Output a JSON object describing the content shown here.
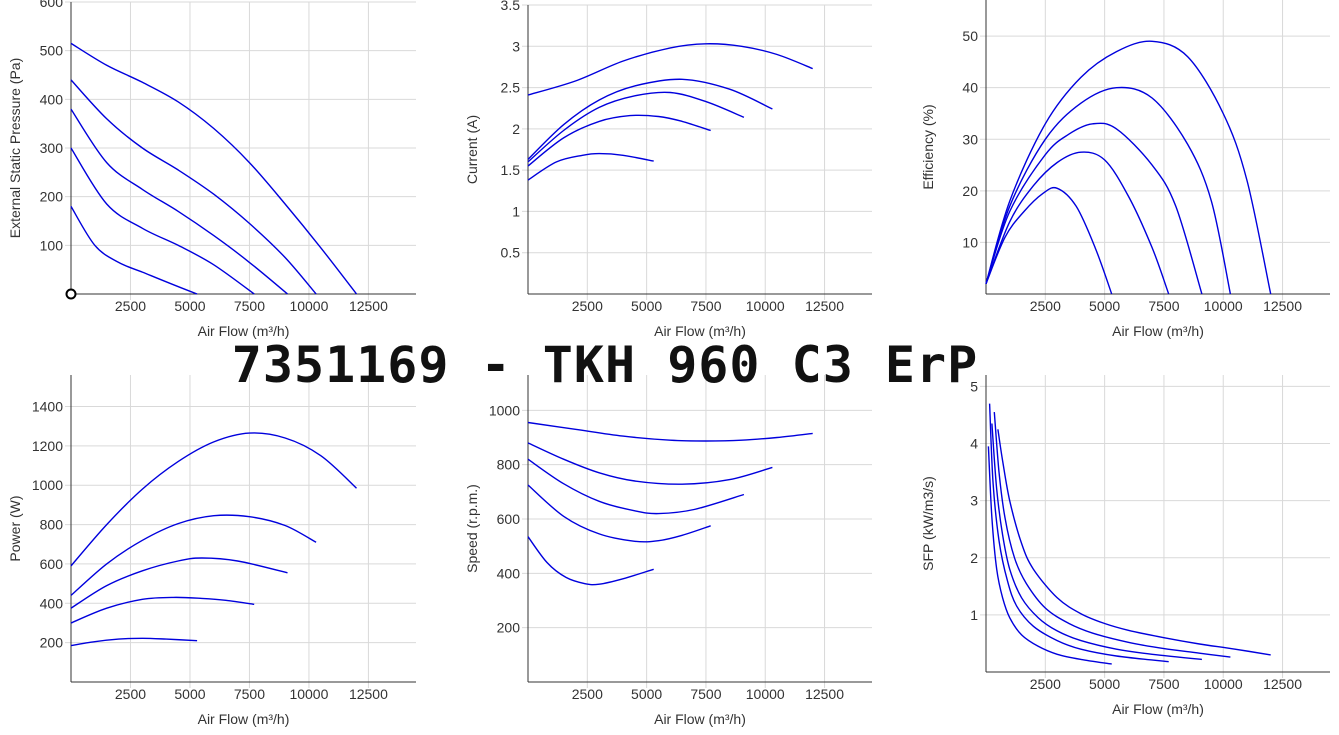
{
  "title": "7351169 - TKH 960 C3 ErP",
  "colors": {
    "curve": "#0000dd",
    "grid": "#d9d9d9",
    "axis": "#333333"
  },
  "chart_data": [
    {
      "id": "pressure",
      "type": "line",
      "xlabel": "Air Flow (m³/h)",
      "ylabel": "External Static Pressure (Pa)",
      "xticks": [
        "2500",
        "5000",
        "7500",
        "10000",
        "12500"
      ],
      "yticks": [
        "100",
        "200",
        "300",
        "400",
        "500",
        "600"
      ],
      "xlim": [
        0,
        14500
      ],
      "ylim": [
        0,
        600
      ],
      "marker": {
        "x": 0,
        "y": 0
      },
      "series": [
        {
          "x": [
            0,
            1500,
            3000,
            4500,
            6000,
            7500,
            9000,
            10500,
            12000
          ],
          "y": [
            515,
            470,
            435,
            395,
            340,
            270,
            185,
            95,
            0
          ]
        },
        {
          "x": [
            0,
            1500,
            3000,
            4500,
            6000,
            7500,
            9000,
            10300
          ],
          "y": [
            440,
            360,
            300,
            255,
            205,
            145,
            75,
            0
          ]
        },
        {
          "x": [
            0,
            1500,
            3000,
            4500,
            6000,
            7500,
            9100
          ],
          "y": [
            380,
            270,
            215,
            170,
            120,
            65,
            0
          ]
        },
        {
          "x": [
            0,
            1500,
            3000,
            4500,
            6000,
            7700
          ],
          "y": [
            300,
            185,
            135,
            100,
            60,
            0
          ]
        },
        {
          "x": [
            0,
            1000,
            2000,
            3000,
            4000,
            5300
          ],
          "y": [
            180,
            100,
            65,
            45,
            25,
            0
          ]
        }
      ]
    },
    {
      "id": "current",
      "type": "line",
      "xlabel": "Air Flow (m³/h)",
      "ylabel": "Current (A)",
      "xticks": [
        "2500",
        "5000",
        "7500",
        "10000",
        "12500"
      ],
      "yticks": [
        "0.5",
        "1",
        "1.5",
        "2",
        "2.5",
        "3",
        "3.5"
      ],
      "xlim": [
        0,
        14500
      ],
      "ylim": [
        0,
        3.5
      ],
      "series": [
        {
          "x": [
            0,
            2000,
            4000,
            6000,
            7500,
            9000,
            10500,
            12000
          ],
          "y": [
            2.41,
            2.58,
            2.82,
            2.98,
            3.03,
            3.0,
            2.9,
            2.73
          ]
        },
        {
          "x": [
            0,
            1500,
            3000,
            4500,
            6500,
            8500,
            10300
          ],
          "y": [
            1.63,
            2.05,
            2.35,
            2.52,
            2.6,
            2.48,
            2.24
          ]
        },
        {
          "x": [
            0,
            1500,
            3000,
            4500,
            6000,
            7500,
            9100
          ],
          "y": [
            1.6,
            1.98,
            2.26,
            2.4,
            2.44,
            2.33,
            2.14
          ]
        },
        {
          "x": [
            0,
            1500,
            3000,
            4300,
            5500,
            6500,
            7700
          ],
          "y": [
            1.55,
            1.89,
            2.09,
            2.16,
            2.15,
            2.09,
            1.98
          ]
        },
        {
          "x": [
            0,
            1200,
            2300,
            3000,
            4000,
            5300
          ],
          "y": [
            1.38,
            1.6,
            1.68,
            1.7,
            1.68,
            1.61
          ]
        }
      ]
    },
    {
      "id": "efficiency",
      "type": "line",
      "xlabel": "Air Flow (m³/h)",
      "ylabel": "Efficiency (%)",
      "xticks": [
        "2500",
        "5000",
        "7500",
        "10000",
        "12500"
      ],
      "yticks": [
        "10",
        "20",
        "30",
        "40",
        "50"
      ],
      "xlim": [
        0,
        14500
      ],
      "ylim": [
        0,
        57
      ],
      "series": [
        {
          "x": [
            0,
            1000,
            2500,
            4000,
            5500,
            7000,
            8500,
            10000,
            11000,
            12000
          ],
          "y": [
            2,
            18,
            33,
            42,
            47,
            49,
            46,
            35,
            22,
            0
          ]
        },
        {
          "x": [
            0,
            1000,
            2500,
            4000,
            5500,
            7000,
            8500,
            9500,
            10300
          ],
          "y": [
            2,
            17,
            30,
            37,
            40,
            38,
            29,
            18,
            0
          ]
        },
        {
          "x": [
            0,
            1000,
            2500,
            3500,
            4500,
            5500,
            7000,
            8000,
            9100
          ],
          "y": [
            2,
            16,
            27,
            31,
            33,
            32,
            25,
            17,
            0
          ]
        },
        {
          "x": [
            0,
            1000,
            2000,
            3000,
            4000,
            5000,
            6000,
            7000,
            7700
          ],
          "y": [
            2,
            14,
            21,
            25.5,
            27.5,
            26,
            19,
            9,
            0
          ]
        },
        {
          "x": [
            0,
            800,
            1600,
            2400,
            3000,
            3800,
            4600,
            5300
          ],
          "y": [
            2,
            11,
            16,
            19.5,
            20.5,
            17,
            9,
            0
          ]
        }
      ]
    },
    {
      "id": "power",
      "type": "line",
      "xlabel": "Air Flow (m³/h)",
      "ylabel": "Power (W)",
      "xticks": [
        "2500",
        "5000",
        "7500",
        "10000",
        "12500"
      ],
      "yticks": [
        "200",
        "400",
        "600",
        "800",
        "1000",
        "1200",
        "1400"
      ],
      "xlim": [
        0,
        14500
      ],
      "ylim": [
        0,
        1560
      ],
      "series": [
        {
          "x": [
            0,
            1500,
            3000,
            4500,
            6000,
            7500,
            9000,
            10500,
            12000
          ],
          "y": [
            590,
            800,
            980,
            1120,
            1220,
            1265,
            1240,
            1150,
            985
          ]
        },
        {
          "x": [
            0,
            1500,
            3000,
            4500,
            6000,
            7500,
            9000,
            10300
          ],
          "y": [
            440,
            600,
            720,
            805,
            845,
            840,
            795,
            710
          ]
        },
        {
          "x": [
            0,
            1500,
            3000,
            4500,
            5500,
            7000,
            9100
          ],
          "y": [
            375,
            490,
            565,
            615,
            630,
            615,
            555
          ]
        },
        {
          "x": [
            0,
            1500,
            3000,
            4300,
            5500,
            6500,
            7700
          ],
          "y": [
            300,
            375,
            420,
            430,
            425,
            415,
            395
          ]
        },
        {
          "x": [
            0,
            1000,
            2000,
            3000,
            4000,
            5300
          ],
          "y": [
            185,
            205,
            218,
            222,
            218,
            210
          ]
        }
      ]
    },
    {
      "id": "speed",
      "type": "line",
      "xlabel": "Air Flow (m³/h)",
      "ylabel": "Speed (r.p.m.)",
      "xticks": [
        "2500",
        "5000",
        "7500",
        "10000",
        "12500"
      ],
      "yticks": [
        "200",
        "400",
        "600",
        "800",
        "1000"
      ],
      "xlim": [
        0,
        14500
      ],
      "ylim": [
        0,
        1130
      ],
      "series": [
        {
          "x": [
            0,
            2000,
            4000,
            6000,
            7500,
            9000,
            10500,
            12000
          ],
          "y": [
            955,
            930,
            905,
            890,
            887,
            890,
            900,
            915
          ]
        },
        {
          "x": [
            0,
            1500,
            3000,
            4500,
            6500,
            8500,
            10300
          ],
          "y": [
            880,
            820,
            770,
            740,
            728,
            745,
            790
          ]
        },
        {
          "x": [
            0,
            1500,
            3000,
            4500,
            5500,
            7000,
            9100
          ],
          "y": [
            820,
            730,
            665,
            630,
            620,
            635,
            690
          ]
        },
        {
          "x": [
            0,
            1500,
            3000,
            4500,
            5500,
            6500,
            7700
          ],
          "y": [
            725,
            610,
            545,
            518,
            520,
            540,
            575
          ]
        },
        {
          "x": [
            0,
            800,
            1600,
            2400,
            3000,
            4000,
            5300
          ],
          "y": [
            535,
            440,
            385,
            362,
            360,
            380,
            415
          ]
        }
      ]
    },
    {
      "id": "sfp",
      "type": "line",
      "xlabel": "Air Flow (m³/h)",
      "ylabel": "SFP (kW/m3/s)",
      "xticks": [
        "2500",
        "5000",
        "7500",
        "10000",
        "12500"
      ],
      "yticks": [
        "1",
        "2",
        "3",
        "4",
        "5"
      ],
      "xlim": [
        0,
        14500
      ],
      "ylim": [
        0,
        5.2
      ],
      "series": [
        {
          "x": [
            500,
            700,
            1000,
            1500,
            2000,
            3000,
            4000,
            5000,
            6000,
            7500,
            9000,
            10500,
            12000
          ],
          "y": [
            4.25,
            3.7,
            3.0,
            2.25,
            1.8,
            1.3,
            1.02,
            0.85,
            0.73,
            0.6,
            0.49,
            0.4,
            0.3
          ]
        },
        {
          "x": [
            350,
            550,
            800,
            1200,
            1700,
            2500,
            3500,
            4500,
            6000,
            7500,
            9000,
            10300
          ],
          "y": [
            4.55,
            3.5,
            2.7,
            2.0,
            1.55,
            1.12,
            0.85,
            0.68,
            0.52,
            0.41,
            0.33,
            0.26
          ]
        },
        {
          "x": [
            250,
            450,
            700,
            1000,
            1500,
            2200,
            3000,
            4000,
            5500,
            7000,
            9100
          ],
          "y": [
            4.35,
            3.2,
            2.4,
            1.8,
            1.3,
            0.95,
            0.72,
            0.55,
            0.4,
            0.31,
            0.22
          ]
        },
        {
          "x": [
            150,
            300,
            550,
            900,
            1300,
            2000,
            3000,
            4000,
            5500,
            7700
          ],
          "y": [
            4.7,
            3.3,
            2.3,
            1.6,
            1.15,
            0.8,
            0.55,
            0.4,
            0.28,
            0.18
          ]
        },
        {
          "x": [
            100,
            250,
            450,
            700,
            1000,
            1500,
            2200,
            3000,
            4000,
            5300
          ],
          "y": [
            3.95,
            2.7,
            1.8,
            1.3,
            0.95,
            0.65,
            0.45,
            0.31,
            0.22,
            0.14
          ]
        }
      ]
    }
  ]
}
